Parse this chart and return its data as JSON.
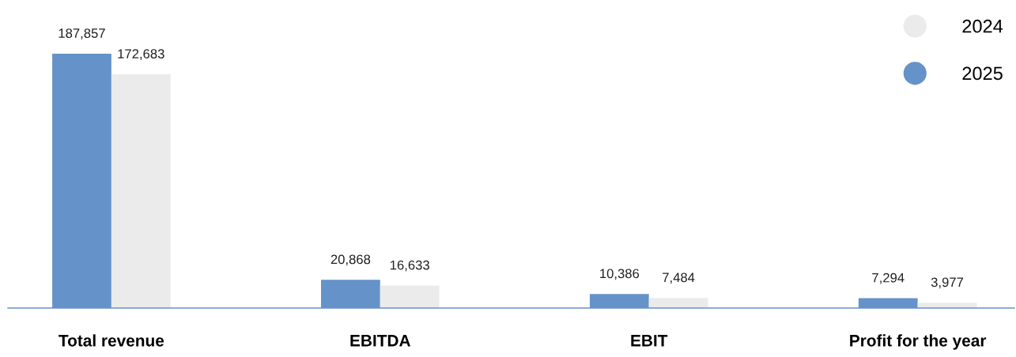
{
  "chart_data": {
    "type": "bar",
    "categories": [
      "Total revenue",
      "EBITDA",
      "EBIT",
      "Profit for the year"
    ],
    "series": [
      {
        "name": "2025",
        "color": "#6592c8",
        "values": [
          187857,
          20868,
          10386,
          7294
        ],
        "value_labels": [
          "187,857",
          "20,868",
          "10,386",
          "7,294"
        ]
      },
      {
        "name": "2024",
        "color": "#ebebeb",
        "values": [
          172683,
          16633,
          7484,
          3977
        ],
        "value_labels": [
          "172,683",
          "16,633",
          "7,484",
          "3,977"
        ]
      }
    ],
    "legend": "top right"
  }
}
